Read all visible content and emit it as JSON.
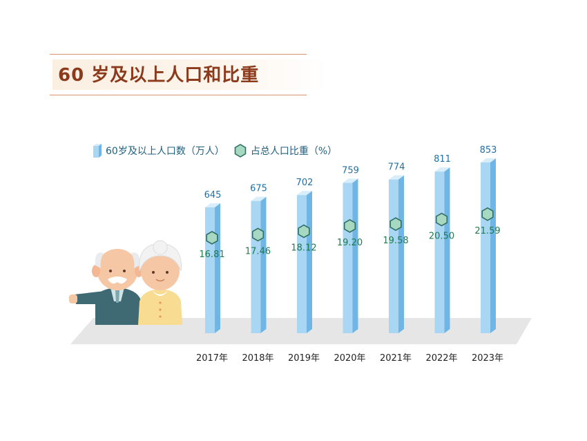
{
  "title": "60 岁及以上人口和比重",
  "legend": {
    "series1": "60岁及以上人口数（万人）",
    "series2": "占总人口比重（%）"
  },
  "colors": {
    "title": "#8b3a1c",
    "bar_front": "#a9d6f2",
    "bar_side": "#6fb6e6",
    "bar_top": "#d9eefb",
    "value_label": "#1f6fa5",
    "hexagon_fill": "#a7d9c2",
    "hexagon_stroke": "#2f6e63",
    "percent_label": "#1f7a4f",
    "floor": "#e6e6e6"
  },
  "illustration": "elderly-couple",
  "chart_data": {
    "type": "bar",
    "categories": [
      "2017年",
      "2018年",
      "2019年",
      "2020年",
      "2021年",
      "2022年",
      "2023年"
    ],
    "series": [
      {
        "name": "60岁及以上人口数（万人）",
        "values": [
          645,
          675,
          702,
          759,
          774,
          811,
          853
        ]
      },
      {
        "name": "占总人口比重（%）",
        "values": [
          16.81,
          17.46,
          18.12,
          19.2,
          19.58,
          20.5,
          21.59
        ]
      }
    ],
    "series_labels": [
      [
        "645",
        "675",
        "702",
        "759",
        "774",
        "811",
        "853"
      ],
      [
        "16.81",
        "17.46",
        "18.12",
        "19.20",
        "19.58",
        "20.50",
        "21.59"
      ]
    ],
    "title": "60 岁及以上人口和比重",
    "xlabel": "",
    "ylabel": "",
    "legend_position": "top-left",
    "grid": false
  }
}
